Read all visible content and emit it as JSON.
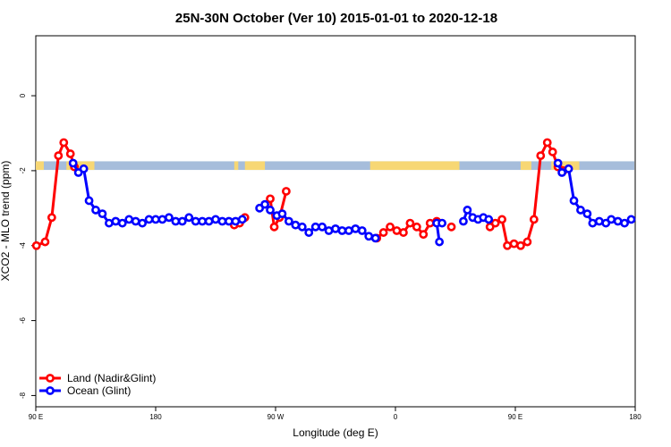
{
  "chart_data": {
    "type": "line",
    "title": "25N-30N October (Ver 10)   2015-01-01 to 2020-12-18",
    "xlabel": "Longitude (deg E)",
    "ylabel": "XCO2 - MLO trend (ppm)",
    "x_domain_deg_e": [
      90,
      450
    ],
    "xlim_labels": [
      {
        "value": 90,
        "label": "90 E"
      },
      {
        "value": 180,
        "label": "180"
      },
      {
        "value": 270,
        "label": "90 W"
      },
      {
        "value": 360,
        "label": "0"
      },
      {
        "value": 450,
        "label": "90 E"
      },
      {
        "value": 540,
        "label": "180"
      }
    ],
    "x_plot_range": [
      90,
      540
    ],
    "ylim": [
      -8.3,
      1.6
    ],
    "y_ticks": [
      0,
      -2,
      -4,
      -6,
      -8
    ],
    "legend_position": "bottom-left",
    "colors": {
      "land": "#ff0000",
      "ocean": "#0000ff",
      "sea_band": "#a6bddb",
      "land_band": "#f7d774"
    },
    "series": [
      {
        "name": "Land (Nadir&Glint)",
        "color": "#ff0000",
        "points": [
          [
            90.5,
            -4.0
          ],
          [
            97,
            -3.9
          ],
          [
            102,
            -3.25
          ],
          [
            107,
            -1.6
          ],
          [
            111,
            -1.25
          ],
          [
            116,
            -1.55
          ],
          [
            119,
            -1.9
          ],
          [
            null,
            null
          ],
          [
            239,
            -3.45
          ],
          [
            243,
            -3.4
          ],
          [
            247,
            -3.25
          ],
          [
            null,
            null
          ],
          [
            266,
            -2.75
          ],
          [
            269,
            -3.5
          ],
          [
            273,
            -3.25
          ],
          [
            278,
            -2.55
          ],
          [
            null,
            null
          ],
          [
            346,
            -3.8
          ],
          [
            351,
            -3.65
          ],
          [
            356,
            -3.5
          ],
          [
            361,
            -3.6
          ],
          [
            366,
            -3.65
          ],
          [
            371,
            -3.4
          ],
          [
            376,
            -3.5
          ],
          [
            381,
            -3.7
          ],
          [
            386,
            -3.4
          ],
          [
            391,
            -3.35
          ],
          [
            null,
            null
          ],
          [
            402,
            -3.5
          ],
          [
            null,
            null
          ],
          [
            431,
            -3.5
          ],
          [
            435,
            -3.4
          ],
          [
            440,
            -3.3
          ],
          [
            444,
            -4.0
          ],
          [
            449,
            -3.95
          ],
          [
            454,
            -4.0
          ],
          [
            459,
            -3.9
          ],
          [
            464,
            -3.3
          ],
          [
            469,
            -1.6
          ],
          [
            474,
            -1.25
          ],
          [
            478,
            -1.5
          ],
          [
            482,
            -1.9
          ],
          [
            486,
            -2.0
          ]
        ]
      },
      {
        "name": "Ocean (Glint)",
        "color": "#0000ff",
        "points": [
          [
            118,
            -1.8
          ],
          [
            122,
            -2.05
          ],
          [
            126,
            -1.95
          ],
          [
            130,
            -2.8
          ],
          [
            135,
            -3.05
          ],
          [
            140,
            -3.15
          ],
          [
            145,
            -3.4
          ],
          [
            150,
            -3.35
          ],
          [
            155,
            -3.4
          ],
          [
            160,
            -3.3
          ],
          [
            165,
            -3.35
          ],
          [
            170,
            -3.4
          ],
          [
            175,
            -3.3
          ],
          [
            180,
            -3.3
          ],
          [
            185,
            -3.3
          ],
          [
            190,
            -3.25
          ],
          [
            195,
            -3.35
          ],
          [
            200,
            -3.35
          ],
          [
            205,
            -3.25
          ],
          [
            210,
            -3.35
          ],
          [
            215,
            -3.35
          ],
          [
            220,
            -3.35
          ],
          [
            225,
            -3.3
          ],
          [
            230,
            -3.35
          ],
          [
            235,
            -3.35
          ],
          [
            240,
            -3.35
          ],
          [
            245,
            -3.3
          ],
          [
            null,
            null
          ],
          [
            258,
            -3.0
          ],
          [
            262,
            -2.9
          ],
          [
            266,
            -3.05
          ],
          [
            271,
            -3.2
          ],
          [
            275,
            -3.15
          ],
          [
            280,
            -3.35
          ],
          [
            285,
            -3.45
          ],
          [
            290,
            -3.5
          ],
          [
            295,
            -3.65
          ],
          [
            300,
            -3.5
          ],
          [
            305,
            -3.5
          ],
          [
            310,
            -3.6
          ],
          [
            315,
            -3.55
          ],
          [
            320,
            -3.6
          ],
          [
            325,
            -3.6
          ],
          [
            330,
            -3.55
          ],
          [
            335,
            -3.6
          ],
          [
            340,
            -3.75
          ],
          [
            345,
            -3.8
          ],
          [
            null,
            null
          ],
          [
            391,
            -3.4
          ],
          [
            393,
            -3.9
          ],
          [
            null,
            null
          ],
          [
            395,
            -3.4
          ],
          [
            null,
            null
          ],
          [
            411,
            -3.35
          ],
          [
            414,
            -3.05
          ],
          [
            418,
            -3.25
          ],
          [
            422,
            -3.3
          ],
          [
            426,
            -3.25
          ],
          [
            430,
            -3.3
          ],
          [
            null,
            null
          ],
          [
            482,
            -1.8
          ],
          [
            485,
            -2.05
          ],
          [
            490,
            -1.95
          ],
          [
            494,
            -2.8
          ],
          [
            499,
            -3.05
          ],
          [
            504,
            -3.15
          ],
          [
            508,
            -3.4
          ],
          [
            513,
            -3.35
          ],
          [
            518,
            -3.4
          ],
          [
            522,
            -3.3
          ],
          [
            527,
            -3.35
          ],
          [
            532,
            -3.4
          ],
          [
            537,
            -3.3
          ]
        ]
      }
    ]
  }
}
